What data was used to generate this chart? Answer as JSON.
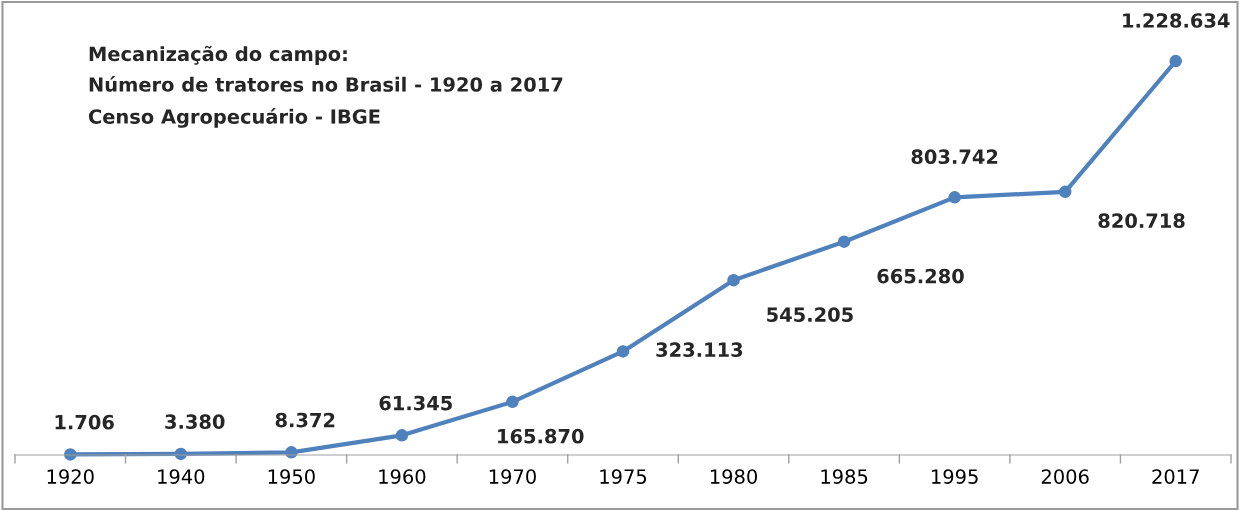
{
  "chart_data": {
    "type": "line",
    "title": "Mecanização do campo:\nNúmero de tratores no Brasil - 1920 a 2017",
    "annotations": [
      "Censo Agropecuário - IBGE"
    ],
    "categories": [
      "1920",
      "1940",
      "1950",
      "1960",
      "1970",
      "1975",
      "1980",
      "1985",
      "1995",
      "2006",
      "2017"
    ],
    "series": [
      {
        "color": "#4f81bd",
        "values": [
          1706,
          3380,
          8372,
          61345,
          165870,
          323113,
          545205,
          665280,
          803742,
          820718,
          1228634
        ],
        "value_labels": [
          "1.706",
          "3.380",
          "8.372",
          "61.345",
          "165.870",
          "323.113",
          "545.205",
          "665.280",
          "803.742",
          "820.718",
          "1.228.634"
        ]
      }
    ],
    "marker": "circle",
    "line_style": "solid",
    "grid": false,
    "legend": false
  }
}
